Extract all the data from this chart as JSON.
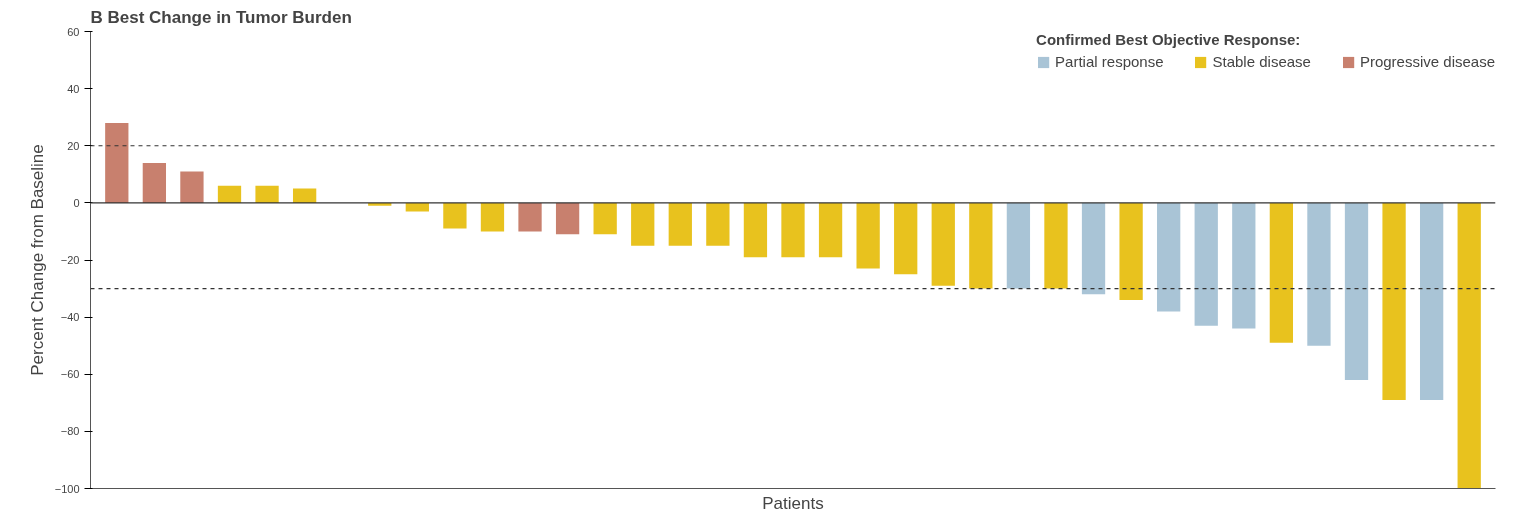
{
  "chart_data": {
    "type": "bar",
    "title": "B  Best Change in Tumor Burden",
    "xlabel": "Patients",
    "ylabel": "Percent Change from Baseline",
    "legend_title": "Confirmed Best Objective Response:",
    "categories": [
      null,
      null,
      null,
      null,
      null,
      null,
      null,
      null,
      null,
      null,
      null,
      null,
      null,
      null,
      null,
      null,
      null,
      null,
      null,
      null,
      null,
      null,
      null,
      null,
      null,
      null,
      null,
      null,
      null,
      null,
      null,
      null,
      null,
      null,
      null,
      null,
      null
    ],
    "series": [
      {
        "name": "Partial response",
        "color": "#a9c4d6",
        "values": [
          null,
          null,
          null,
          null,
          null,
          null,
          null,
          null,
          null,
          null,
          null,
          null,
          null,
          null,
          null,
          null,
          null,
          null,
          null,
          null,
          null,
          null,
          null,
          null,
          -30,
          null,
          -32,
          null,
          -38,
          -43,
          -44,
          null,
          -50,
          -62,
          null,
          -69,
          null
        ]
      },
      {
        "name": "Stable disease",
        "color": "#e8c21e",
        "values": [
          null,
          null,
          null,
          6,
          6,
          5,
          0,
          -1,
          -3,
          -9,
          -10,
          null,
          null,
          -11,
          -15,
          -15,
          -15,
          -19,
          -19,
          -19,
          -23,
          -25,
          -29,
          -30,
          null,
          -30,
          null,
          -34,
          null,
          null,
          null,
          -49,
          null,
          null,
          -69,
          null,
          -100
        ]
      },
      {
        "name": "Progressive disease",
        "color": "#c8806e",
        "values": [
          28,
          14,
          11,
          null,
          null,
          null,
          null,
          null,
          null,
          null,
          null,
          -10,
          -11,
          null,
          null,
          null,
          null,
          null,
          null,
          null,
          null,
          null,
          null,
          null,
          null,
          null,
          null,
          null,
          null,
          null,
          null,
          null,
          null,
          null,
          null,
          null,
          null
        ]
      }
    ],
    "ylim": [
      -100,
      60
    ],
    "yticks": [
      -100,
      -80,
      -60,
      -40,
      -20,
      0,
      20,
      40,
      60
    ],
    "ref_lines": [
      {
        "axis": "y",
        "value": 20,
        "line_style": "dashed",
        "color": "#333333"
      },
      {
        "axis": "y",
        "value": -30,
        "line_style": "dashed",
        "color": "#333333"
      },
      {
        "axis": "y",
        "value": 0,
        "line_style": "solid",
        "color": "#333333"
      }
    ],
    "tick_labels": "y",
    "grid": false,
    "legend": "top"
  }
}
